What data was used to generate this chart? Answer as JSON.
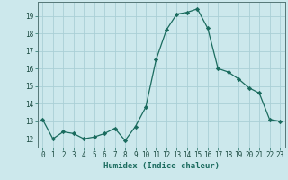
{
  "x": [
    0,
    1,
    2,
    3,
    4,
    5,
    6,
    7,
    8,
    9,
    10,
    11,
    12,
    13,
    14,
    15,
    16,
    17,
    18,
    19,
    20,
    21,
    22,
    23
  ],
  "y": [
    13.1,
    12.0,
    12.4,
    12.3,
    12.0,
    12.1,
    12.3,
    12.6,
    11.9,
    12.7,
    13.8,
    16.5,
    18.2,
    19.1,
    19.2,
    19.4,
    18.3,
    16.0,
    15.8,
    15.4,
    14.9,
    14.6,
    13.1,
    13.0
  ],
  "xlim": [
    -0.5,
    23.5
  ],
  "ylim": [
    11.5,
    19.8
  ],
  "yticks": [
    12,
    13,
    14,
    15,
    16,
    17,
    18,
    19
  ],
  "xticks": [
    0,
    1,
    2,
    3,
    4,
    5,
    6,
    7,
    8,
    9,
    10,
    11,
    12,
    13,
    14,
    15,
    16,
    17,
    18,
    19,
    20,
    21,
    22,
    23
  ],
  "xlabel": "Humidex (Indice chaleur)",
  "line_color": "#1a6b5e",
  "marker": "D",
  "marker_size": 2.2,
  "bg_color": "#cce8ec",
  "grid_color": "#aacfd6",
  "tick_fontsize": 5.5,
  "xlabel_fontsize": 6.5,
  "title": ""
}
